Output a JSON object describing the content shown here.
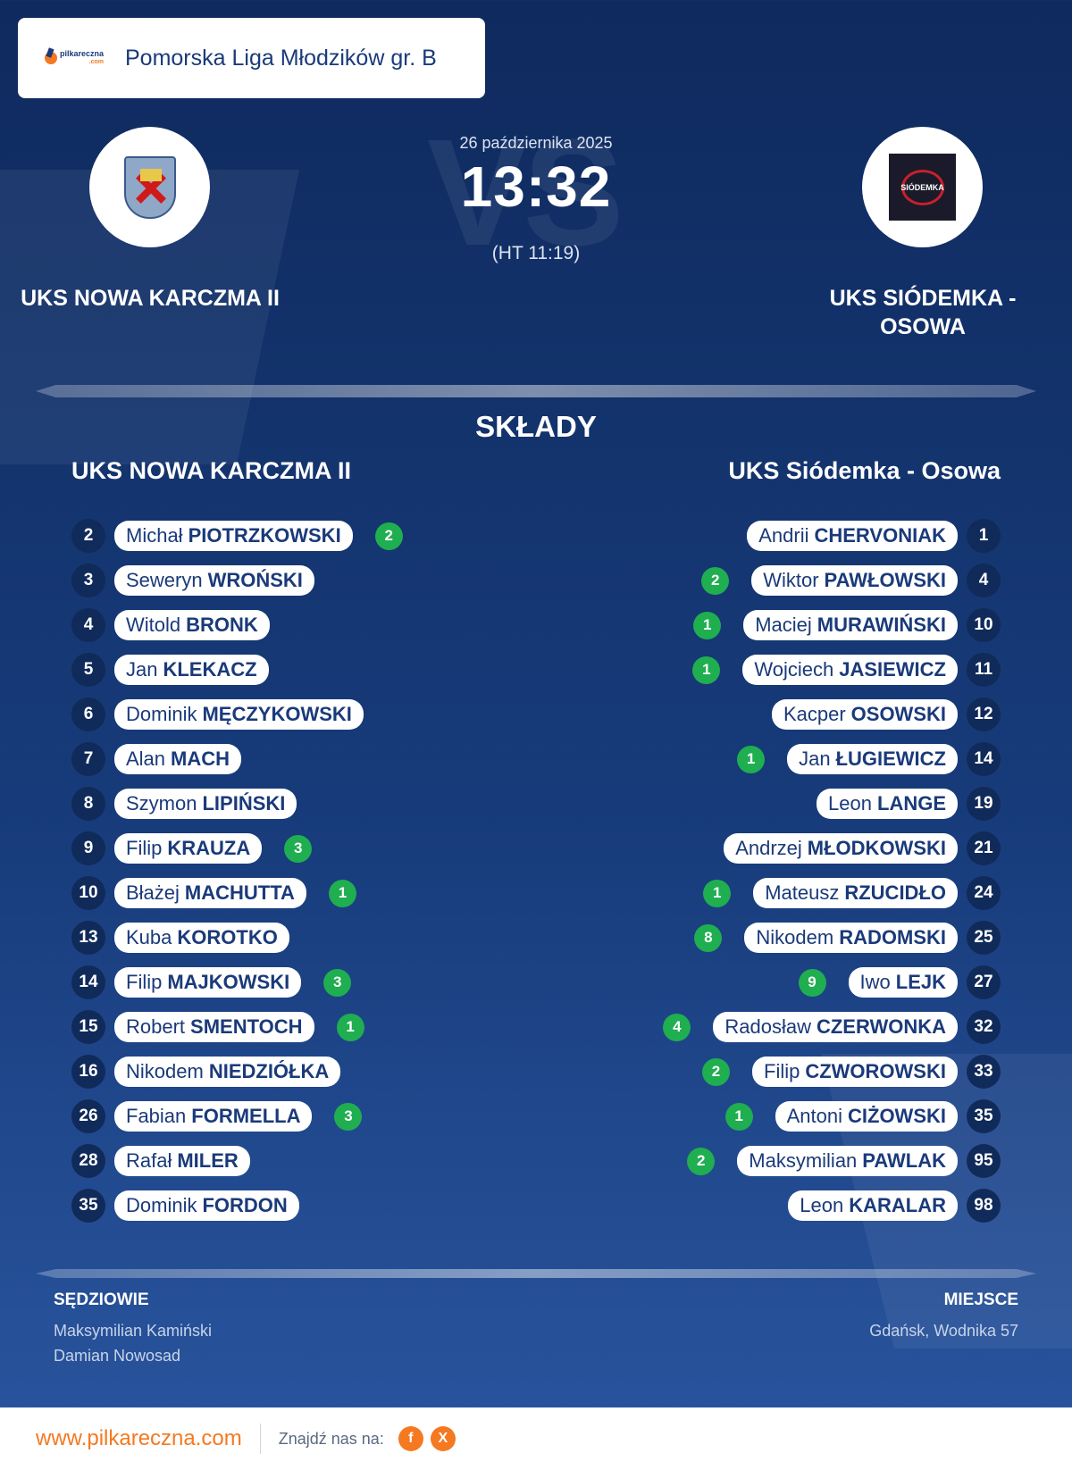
{
  "header": {
    "logo_text": "pilkareczna",
    "logo_sub": ".com",
    "league": "Pomorska Liga Młodzików gr. B"
  },
  "match": {
    "date": "26 października 2025",
    "score": "13:32",
    "halftime": "(HT 11:19)",
    "vs_text": "VS"
  },
  "home": {
    "name": "UKS NOWA KARCZMA II",
    "lineup_title": "UKS NOWA KARCZMA II",
    "players": [
      {
        "number": "2",
        "first": "Michał",
        "last": "PIOTRZKOWSKI",
        "goals": "2"
      },
      {
        "number": "3",
        "first": "Seweryn",
        "last": "WROŃSKI",
        "goals": ""
      },
      {
        "number": "4",
        "first": "Witold",
        "last": "BRONK",
        "goals": ""
      },
      {
        "number": "5",
        "first": "Jan",
        "last": "KLEKACZ",
        "goals": ""
      },
      {
        "number": "6",
        "first": "Dominik",
        "last": "MĘCZYKOWSKI",
        "goals": ""
      },
      {
        "number": "7",
        "first": "Alan",
        "last": "MACH",
        "goals": ""
      },
      {
        "number": "8",
        "first": "Szymon",
        "last": "LIPIŃSKI",
        "goals": ""
      },
      {
        "number": "9",
        "first": "Filip",
        "last": "KRAUZA",
        "goals": "3"
      },
      {
        "number": "10",
        "first": "Błażej",
        "last": "MACHUTTA",
        "goals": "1"
      },
      {
        "number": "13",
        "first": "Kuba",
        "last": "KOROTKO",
        "goals": ""
      },
      {
        "number": "14",
        "first": "Filip",
        "last": "MAJKOWSKI",
        "goals": "3"
      },
      {
        "number": "15",
        "first": "Robert",
        "last": "SMENTOCH",
        "goals": "1"
      },
      {
        "number": "16",
        "first": "Nikodem",
        "last": "NIEDZIÓŁKA",
        "goals": ""
      },
      {
        "number": "26",
        "first": "Fabian",
        "last": "FORMELLA",
        "goals": "3"
      },
      {
        "number": "28",
        "first": "Rafał",
        "last": "MILER",
        "goals": ""
      },
      {
        "number": "35",
        "first": "Dominik",
        "last": "FORDON",
        "goals": ""
      }
    ]
  },
  "away": {
    "name": "UKS SIÓDEMKA - OSOWA",
    "lineup_title": "UKS Siódemka - Osowa",
    "crest_text": "SIÓDEMKA",
    "players": [
      {
        "number": "1",
        "first": "Andrii",
        "last": "CHERVONIAK",
        "goals": ""
      },
      {
        "number": "4",
        "first": "Wiktor",
        "last": "PAWŁOWSKI",
        "goals": "2"
      },
      {
        "number": "10",
        "first": "Maciej",
        "last": "MURAWIŃSKI",
        "goals": "1"
      },
      {
        "number": "11",
        "first": "Wojciech",
        "last": "JASIEWICZ",
        "goals": "1"
      },
      {
        "number": "12",
        "first": "Kacper",
        "last": "OSOWSKI",
        "goals": ""
      },
      {
        "number": "14",
        "first": "Jan",
        "last": "ŁUGIEWICZ",
        "goals": "1"
      },
      {
        "number": "19",
        "first": "Leon",
        "last": "LANGE",
        "goals": ""
      },
      {
        "number": "21",
        "first": "Andrzej",
        "last": "MŁODKOWSKI",
        "goals": ""
      },
      {
        "number": "24",
        "first": "Mateusz",
        "last": "RZUCIDŁO",
        "goals": "1"
      },
      {
        "number": "25",
        "first": "Nikodem",
        "last": "RADOMSKI",
        "goals": "8"
      },
      {
        "number": "27",
        "first": "Iwo",
        "last": "LEJK",
        "goals": "9"
      },
      {
        "number": "32",
        "first": "Radosław",
        "last": "CZERWONKA",
        "goals": "4"
      },
      {
        "number": "33",
        "first": "Filip",
        "last": "CZWOROWSKI",
        "goals": "2"
      },
      {
        "number": "35",
        "first": "Antoni",
        "last": "CIŻOWSKI",
        "goals": "1"
      },
      {
        "number": "95",
        "first": "Maksymilian",
        "last": "PAWLAK",
        "goals": "2"
      },
      {
        "number": "98",
        "first": "Leon",
        "last": "KARALAR",
        "goals": ""
      }
    ]
  },
  "section_title": "SKŁADY",
  "referees": {
    "title": "SĘDZIOWIE",
    "names": [
      "Maksymilian Kamiński",
      "Damian Nowosad"
    ]
  },
  "venue": {
    "title": "MIEJSCE",
    "place": "Gdańsk, Wodnika 57"
  },
  "footer": {
    "site": "www.pilkareczna.com",
    "find_us": "Znajdź nas na:",
    "facebook": "f",
    "x": "X"
  },
  "colors": {
    "accent": "#f47920",
    "goal_badge": "#1fae50",
    "navy": "#1a3a7a"
  }
}
